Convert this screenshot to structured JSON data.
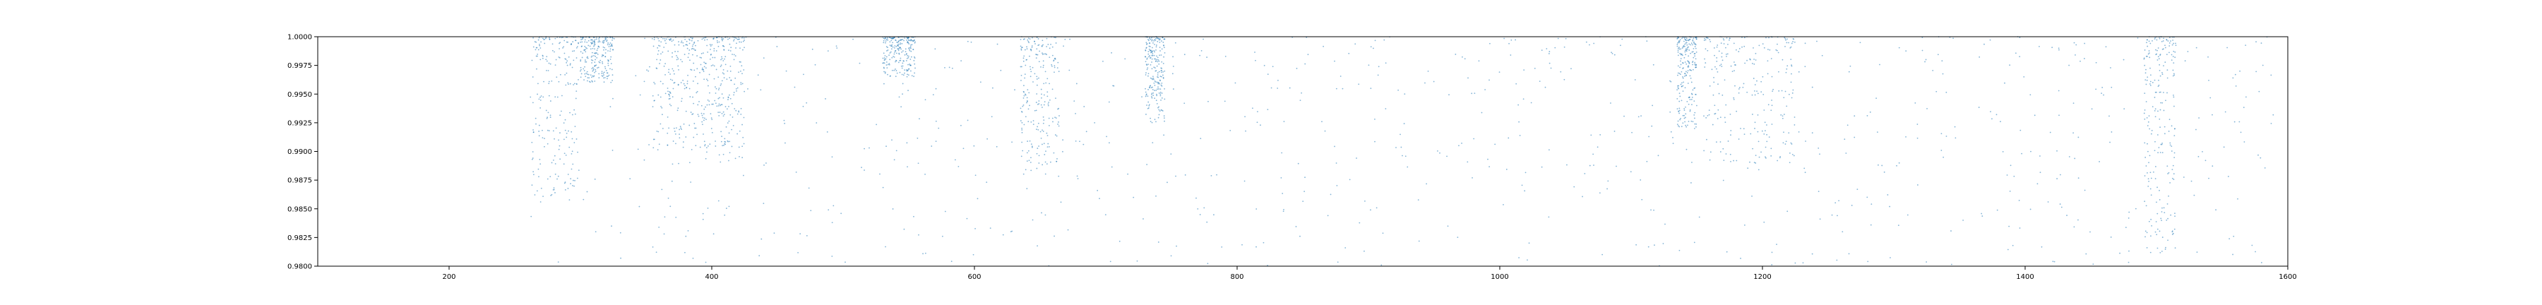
{
  "chart_data": {
    "type": "scatter",
    "title": "",
    "xlabel": "",
    "ylabel": "",
    "xlim": [
      100,
      1600
    ],
    "ylim": [
      0.98,
      1.0
    ],
    "x_ticks": [
      200,
      400,
      600,
      800,
      1000,
      1200,
      1400,
      1600
    ],
    "y_ticks": [
      "0.9800",
      "0.9825",
      "0.9850",
      "0.9875",
      "0.9900",
      "0.9925",
      "0.9950",
      "0.9975",
      "1.0000"
    ],
    "grid": false,
    "legend": "none",
    "series": [
      {
        "color": "#1f77b4",
        "marker": "point",
        "point_count": 3000,
        "clusters": [
          {
            "x": [
              263,
              300
            ],
            "y": [
              0.986,
              1.0
            ]
          },
          {
            "x": [
              300,
              325
            ],
            "y": [
              0.996,
              1.0
            ]
          },
          {
            "x": [
              355,
              395
            ],
            "y": [
              0.99,
              1.0
            ]
          },
          {
            "x": [
              395,
              425
            ],
            "y": [
              0.989,
              1.0
            ]
          },
          {
            "x": [
              530,
              555
            ],
            "y": [
              0.9965,
              1.0
            ]
          },
          {
            "x": [
              635,
              665
            ],
            "y": [
              0.988,
              1.0
            ]
          },
          {
            "x": [
              730,
              745
            ],
            "y": [
              0.9925,
              1.0
            ]
          },
          {
            "x": [
              1135,
              1150
            ],
            "y": [
              0.992,
              1.0
            ]
          },
          {
            "x": [
              1155,
              1225
            ],
            "y": [
              0.989,
              1.0
            ]
          },
          {
            "x": [
              1490,
              1515
            ],
            "y": [
              0.981,
              1.0
            ]
          }
        ]
      }
    ]
  }
}
